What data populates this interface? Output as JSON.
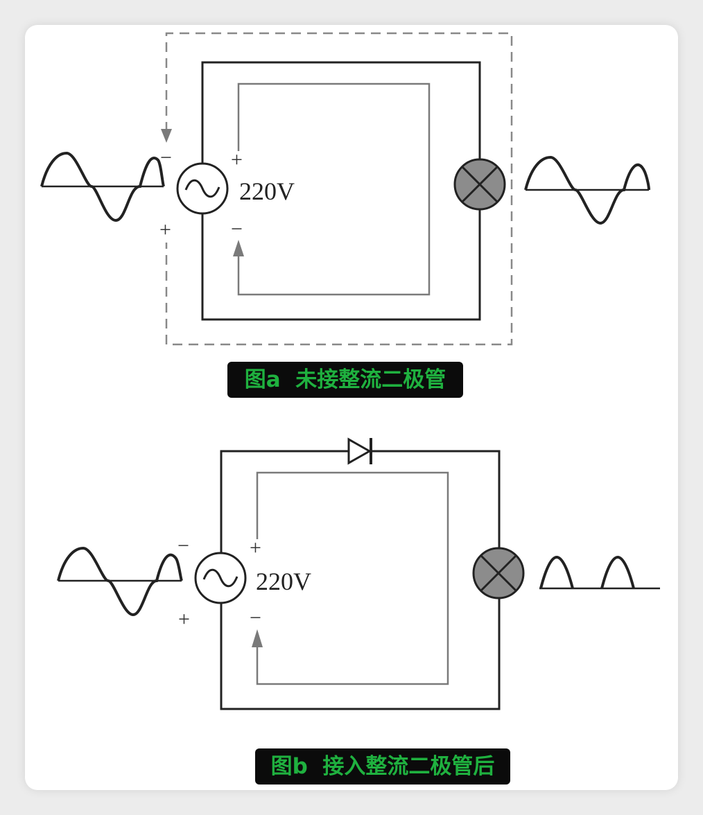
{
  "figure_a": {
    "caption": "图a  未接整流二极管",
    "voltage": "220V",
    "top_left_sign": "−",
    "bottom_left_sign": "+",
    "inner_top_sign": "+",
    "inner_bottom_sign": "−"
  },
  "figure_b": {
    "caption": "图b  接入整流二极管后",
    "voltage": "220V",
    "top_left_sign": "−",
    "bottom_left_sign": "+",
    "inner_top_sign": "+",
    "inner_bottom_sign": "−"
  },
  "colors": {
    "wire": "#222222",
    "current_path": "#7a7a7a",
    "dashed_path": "#888888",
    "lamp_fill": "#8c8c8c",
    "caption_bg": "#0b0b0b",
    "caption_text": "#1fb13f"
  },
  "icons": [
    "ac-source-icon",
    "lamp-icon",
    "diode-icon",
    "sine-wave-icon",
    "half-wave-icon",
    "current-arrow-icon"
  ]
}
